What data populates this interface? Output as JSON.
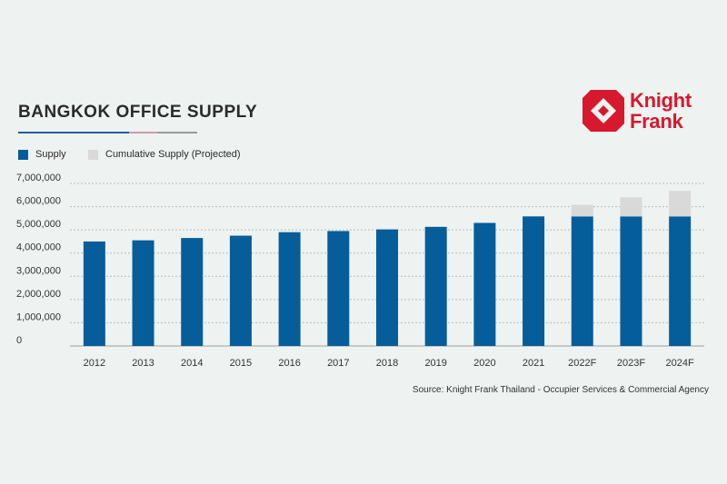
{
  "title": "BANGKOK OFFICE SUPPLY",
  "legend": {
    "supply_label": "Supply",
    "cumulative_label": "Cumulative Supply (Projected)"
  },
  "logo": {
    "line1": "Knight",
    "line2": "Frank"
  },
  "source": "Source: Knight Frank Thailand - Occupier Services & Commercial Agency",
  "colors": {
    "supply": "#055d9a",
    "projected": "#d9d9d9",
    "brand_red": "#d6192f"
  },
  "chart_data": {
    "type": "bar",
    "stacked": true,
    "categories": [
      "2012",
      "2013",
      "2014",
      "2015",
      "2016",
      "2017",
      "2018",
      "2019",
      "2020",
      "2021",
      "2022F",
      "2023F",
      "2024F"
    ],
    "series": [
      {
        "name": "Supply",
        "values": [
          4500000,
          4550000,
          4650000,
          4750000,
          4900000,
          4950000,
          5020000,
          5130000,
          5300000,
          5580000,
          5580000,
          5580000,
          5580000
        ]
      },
      {
        "name": "Cumulative Supply (Projected)",
        "values": [
          0,
          0,
          0,
          0,
          0,
          0,
          0,
          0,
          0,
          0,
          500000,
          820000,
          1100000
        ]
      }
    ],
    "ylim": [
      0,
      7000000
    ],
    "yticks": [
      "0",
      "1,000,000",
      "2,000,000",
      "3,000,000",
      "4,000,000",
      "5,000,000",
      "6,000,000",
      "7,000,000"
    ],
    "grid": "dashed horizontal",
    "legend_position": "top-left"
  }
}
